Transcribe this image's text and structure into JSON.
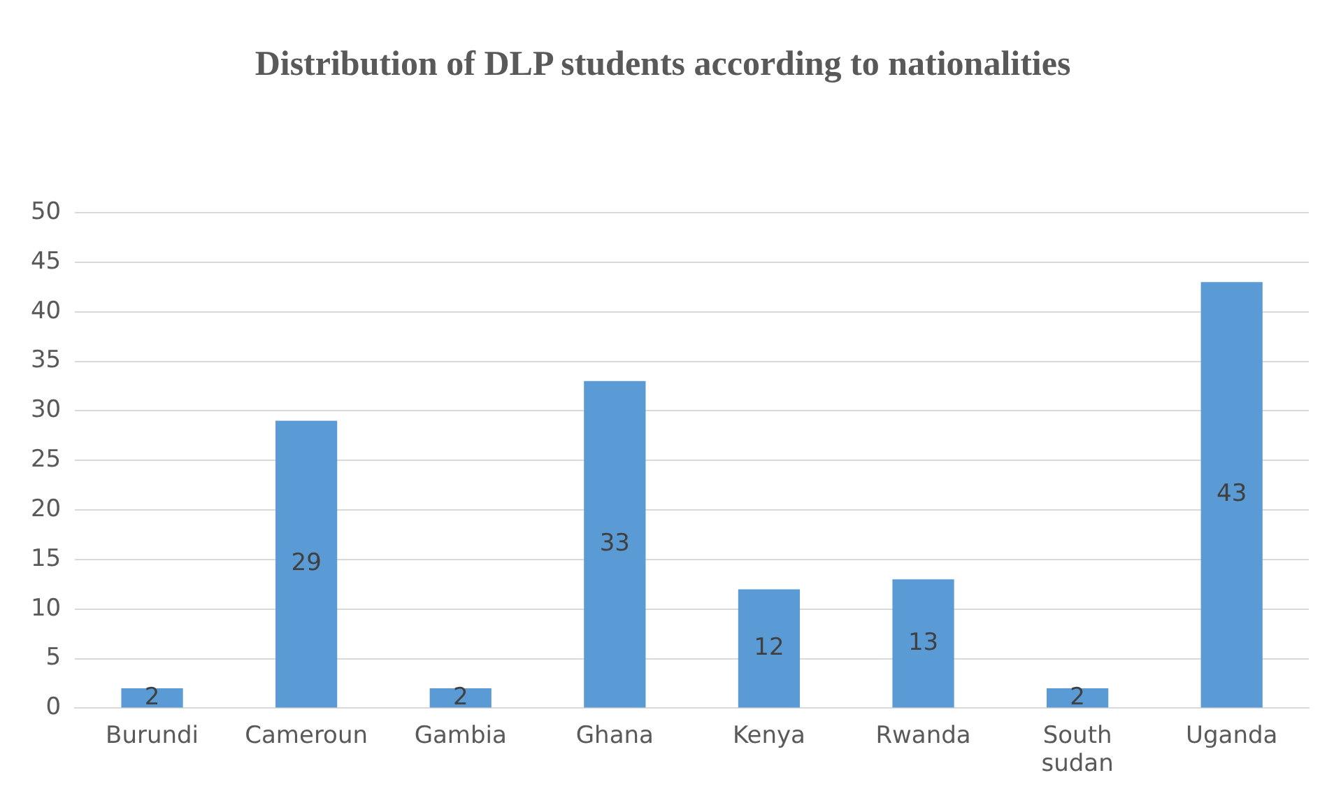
{
  "chart_data": {
    "type": "bar",
    "title": "Distribution of DLP students according to nationalities",
    "categories": [
      "Burundi",
      "Cameroun",
      "Gambia",
      "Ghana",
      "Kenya",
      "Rwanda",
      "South sudan",
      "Uganda"
    ],
    "values": [
      2,
      29,
      2,
      33,
      12,
      13,
      2,
      43
    ],
    "color": "#5b9bd5",
    "ylim": [
      0,
      50
    ],
    "yticks": [
      0,
      5,
      10,
      15,
      20,
      25,
      30,
      35,
      40,
      45,
      50
    ],
    "grid": "y",
    "data_labels": true,
    "legend": false
  }
}
